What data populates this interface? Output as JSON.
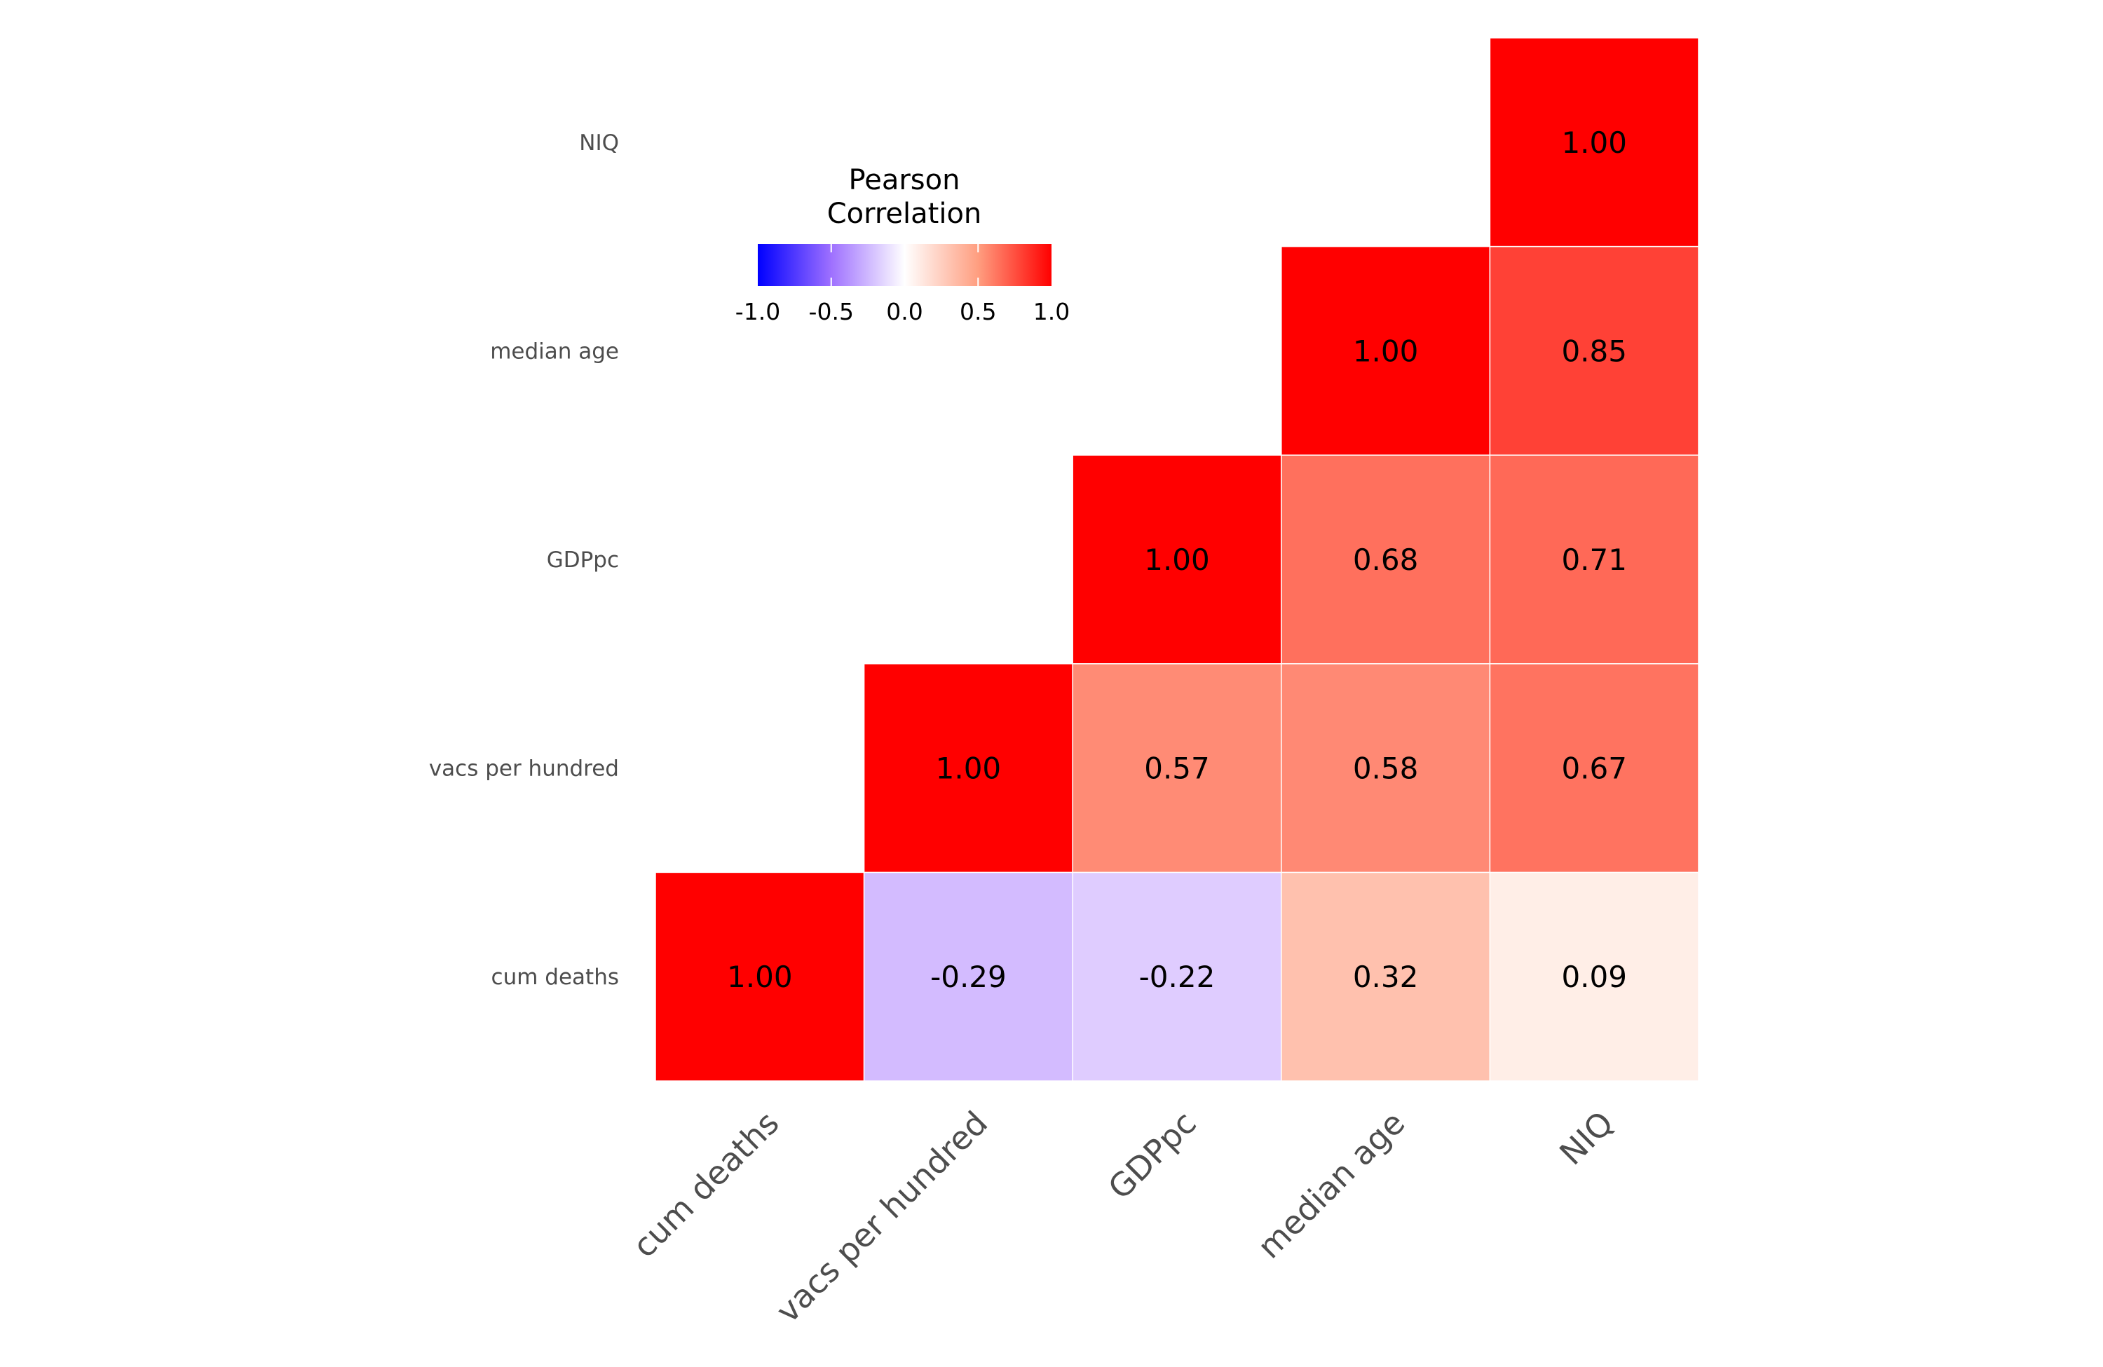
{
  "chart_data": {
    "type": "heatmap",
    "variables": [
      "cum deaths",
      "vacs per hundred",
      "GDPpc",
      "median age",
      "NIQ"
    ],
    "matrix": [
      [
        1.0,
        -0.29,
        -0.22,
        0.32,
        0.09
      ],
      [
        null,
        1.0,
        0.57,
        0.58,
        0.67
      ],
      [
        null,
        null,
        1.0,
        0.68,
        0.71
      ],
      [
        null,
        null,
        null,
        1.0,
        0.85
      ],
      [
        null,
        null,
        null,
        null,
        1.0
      ]
    ],
    "labels": [
      [
        "1.00",
        "-0.29",
        "-0.22",
        "0.32",
        "0.09"
      ],
      [
        "",
        "1.00",
        "0.57",
        "0.58",
        "0.67"
      ],
      [
        "",
        "",
        "1.00",
        "0.68",
        "0.71"
      ],
      [
        "",
        "",
        "",
        "1.00",
        "0.85"
      ],
      [
        "",
        "",
        "",
        "",
        "1.00"
      ]
    ],
    "legend": {
      "title_lines": [
        "Pearson",
        "Correlation"
      ],
      "ticks": [
        "-1.0",
        "-0.5",
        "0.0",
        "0.5",
        "1.0"
      ],
      "range": [
        -1,
        1
      ],
      "placement": "top-left",
      "low_color": "#0000FF",
      "mid_color": "#FFFFFF",
      "high_color": "#FF0000"
    },
    "color_scale": "diverging blue-white-red",
    "grid": false
  }
}
